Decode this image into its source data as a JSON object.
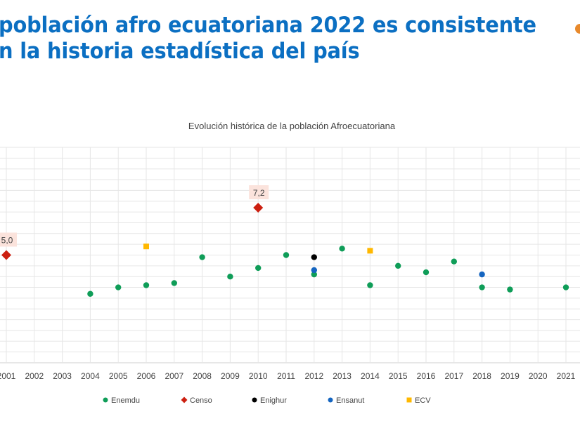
{
  "slide": {
    "title_line1": "población afro ecuatoriana 2022 es consistente",
    "title_line2": "n la historia estadística del país",
    "title_color": "#0b6fc2"
  },
  "chart_data": {
    "type": "scatter",
    "title": "Evolución histórica de la población Afroecuatoriana",
    "xlabel": "",
    "ylabel": "",
    "x_ticks": [
      "2001",
      "2002",
      "2003",
      "2004",
      "2005",
      "2006",
      "2007",
      "2008",
      "2009",
      "2010",
      "2011",
      "2012",
      "2013",
      "2014",
      "2015",
      "2016",
      "2017",
      "2018",
      "2019",
      "2020",
      "2021"
    ],
    "ylim": [
      0,
      10
    ],
    "grid": true,
    "grid_step": 0.5,
    "legend_position": "bottom",
    "series": [
      {
        "name": "Enemdu",
        "color": "#0f9d58",
        "marker": "circle",
        "points": [
          [
            2004,
            3.2
          ],
          [
            2005,
            3.5
          ],
          [
            2006,
            3.6
          ],
          [
            2007,
            3.7
          ],
          [
            2008,
            4.9
          ],
          [
            2009,
            4.0
          ],
          [
            2010,
            4.4
          ],
          [
            2011,
            5.0
          ],
          [
            2012,
            4.1
          ],
          [
            2013,
            5.3
          ],
          [
            2014,
            3.6
          ],
          [
            2015,
            4.5
          ],
          [
            2016,
            4.2
          ],
          [
            2017,
            4.7
          ],
          [
            2018,
            3.5
          ],
          [
            2019,
            3.4
          ],
          [
            2021,
            3.5
          ]
        ]
      },
      {
        "name": "Censo",
        "color": "#cc1f10",
        "marker": "diamond",
        "points": [
          [
            2001,
            5.0
          ],
          [
            2010,
            7.2
          ]
        ],
        "labels": [
          "5,0",
          "7,2"
        ]
      },
      {
        "name": "Enighur",
        "color": "#000000",
        "marker": "circle",
        "points": [
          [
            2012,
            4.9
          ]
        ]
      },
      {
        "name": "Ensanut",
        "color": "#1565c0",
        "marker": "circle",
        "points": [
          [
            2012,
            4.3
          ],
          [
            2018,
            4.1
          ]
        ]
      },
      {
        "name": "ECV",
        "color": "#ffb800",
        "marker": "square",
        "points": [
          [
            2006,
            5.4
          ],
          [
            2014,
            5.2
          ]
        ]
      }
    ]
  }
}
